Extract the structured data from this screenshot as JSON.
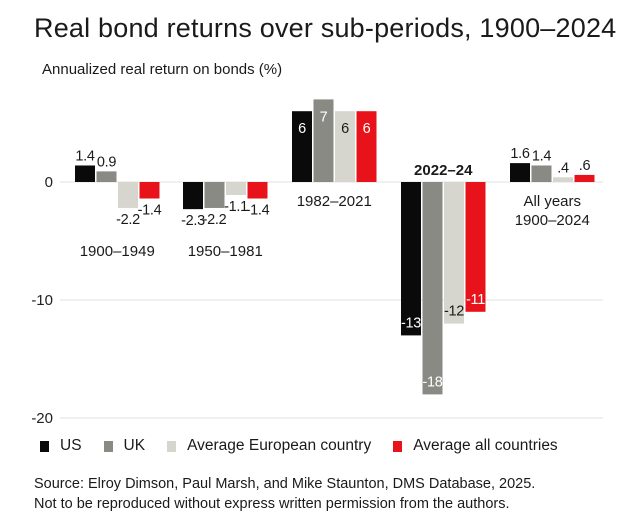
{
  "chart_data": {
    "type": "bar",
    "title": "Real bond returns over sub-periods, 1900–2024",
    "ylabel": "Annualized real return on bonds (%)",
    "xlabel": "",
    "ylim": [
      -20,
      8
    ],
    "yticks": [
      0,
      -10,
      -20
    ],
    "grid": true,
    "categories": [
      "1900–1949",
      "1950–1981",
      "1982–2021",
      "2022–24",
      "All years 1900–2024"
    ],
    "category_labels": [
      [
        "1900–1949"
      ],
      [
        "1950–1981"
      ],
      [
        "1982–2021"
      ],
      [
        "2022–24"
      ],
      [
        "All years",
        "1900–2024"
      ]
    ],
    "series": [
      {
        "name": "US",
        "color": "#0a0a0a",
        "values": [
          1.4,
          -2.3,
          6,
          -13,
          1.6
        ],
        "labels": [
          "1.4",
          "-2.3",
          "6",
          "-13",
          "1.6"
        ]
      },
      {
        "name": "UK",
        "color": "#8a8a84",
        "values": [
          0.9,
          -2.2,
          7,
          -18,
          1.4
        ],
        "labels": [
          "0.9",
          "-2.2",
          "7",
          "-18",
          "1.4"
        ]
      },
      {
        "name": "Average European country",
        "color": "#d6d6ce",
        "values": [
          -2.2,
          -1.1,
          6,
          -12,
          0.4
        ],
        "labels": [
          "-2.2",
          "-1.1",
          "6",
          "-12",
          ".4"
        ]
      },
      {
        "name": "Average all countries",
        "color": "#e8131a",
        "values": [
          -1.4,
          -1.4,
          6,
          -11,
          0.6
        ],
        "labels": [
          "-1.4",
          "-1.4",
          "6",
          "-11",
          ".6"
        ]
      }
    ],
    "legend_position": "bottom"
  },
  "source_lines": [
    "Source: Elroy Dimson, Paul Marsh, and Mike Staunton, DMS Database, 2025.",
    "Not to be reproduced without express written permission from the authors."
  ]
}
